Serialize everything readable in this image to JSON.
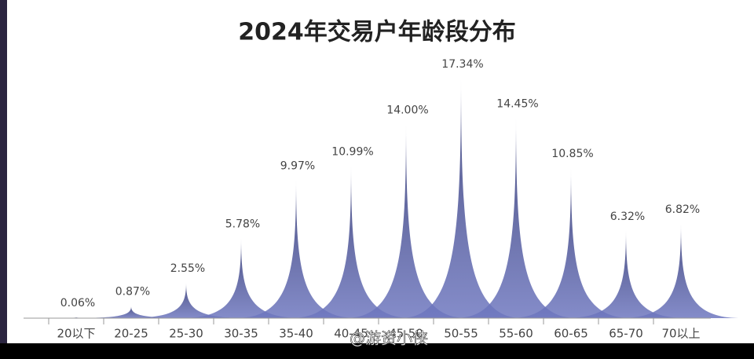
{
  "chart_data": {
    "type": "spike",
    "title": "2024年交易户年龄段分布",
    "categories": [
      "20以下",
      "20-25",
      "25-30",
      "30-35",
      "35-40",
      "40-45",
      "45-50",
      "50-55",
      "55-60",
      "60-65",
      "65-70",
      "70以上"
    ],
    "values": [
      0.06,
      0.87,
      2.55,
      5.78,
      9.97,
      10.99,
      14.0,
      17.34,
      14.45,
      10.85,
      6.32,
      6.82
    ],
    "value_labels": [
      "0.06%",
      "0.87%",
      "2.55%",
      "5.78%",
      "9.97%",
      "10.99%",
      "14.00%",
      "17.34%",
      "14.45%",
      "10.85%",
      "6.32%",
      "6.82%"
    ],
    "color": "#4a5199"
  },
  "watermark": "@游资小侠"
}
